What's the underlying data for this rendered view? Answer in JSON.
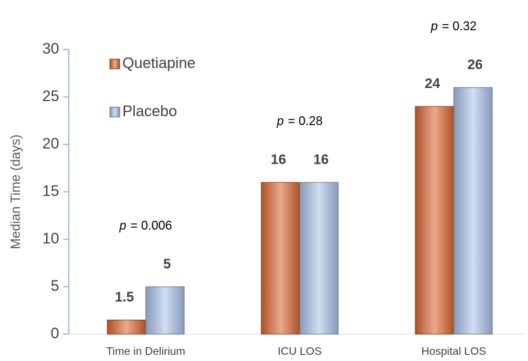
{
  "chart_data": {
    "type": "bar",
    "y_label": "Median Time (days)",
    "categories": [
      "Time in Delirium",
      "ICU LOS",
      "Hospital LOS"
    ],
    "series": [
      {
        "name": "Quetiapine",
        "color": "#d9642e",
        "values": [
          1.5,
          16,
          24
        ]
      },
      {
        "name": "Placebo",
        "color": "#a9c1e8",
        "values": [
          5,
          16,
          26
        ]
      }
    ],
    "annotations": [
      {
        "symbol": "p",
        "text": "= 0.006"
      },
      {
        "symbol": "p",
        "text": "= 0.28"
      },
      {
        "symbol": "p",
        "text": "= 0.32"
      }
    ],
    "ylim": [
      0,
      30
    ],
    "yticks": [
      0,
      5,
      10,
      15,
      20,
      25,
      30
    ],
    "grid": false,
    "legend": "upper left"
  }
}
